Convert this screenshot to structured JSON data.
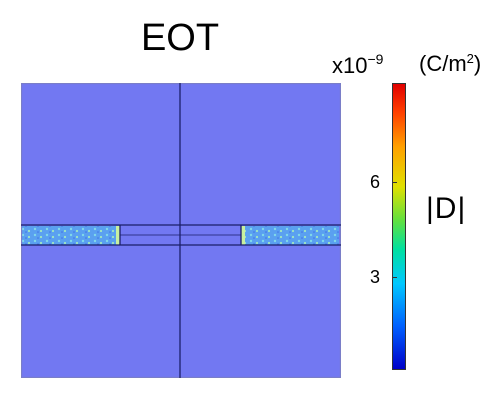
{
  "title": "EOT",
  "colorbar": {
    "exponent_base": "x10",
    "exponent_power": "−9",
    "unit_prefix": "(C/m",
    "unit_power": "2",
    "unit_suffix": ")",
    "quantity": "|D|",
    "ticks": [
      "6",
      "3"
    ]
  },
  "colors": {
    "background_field": "#7278f2",
    "outline": "#1b1f6a",
    "colormap": [
      "#0000c8",
      "#0060ff",
      "#00c8ff",
      "#00e0a0",
      "#60e040",
      "#e0e000",
      "#ffa000",
      "#ff4000",
      "#e00000"
    ]
  }
}
